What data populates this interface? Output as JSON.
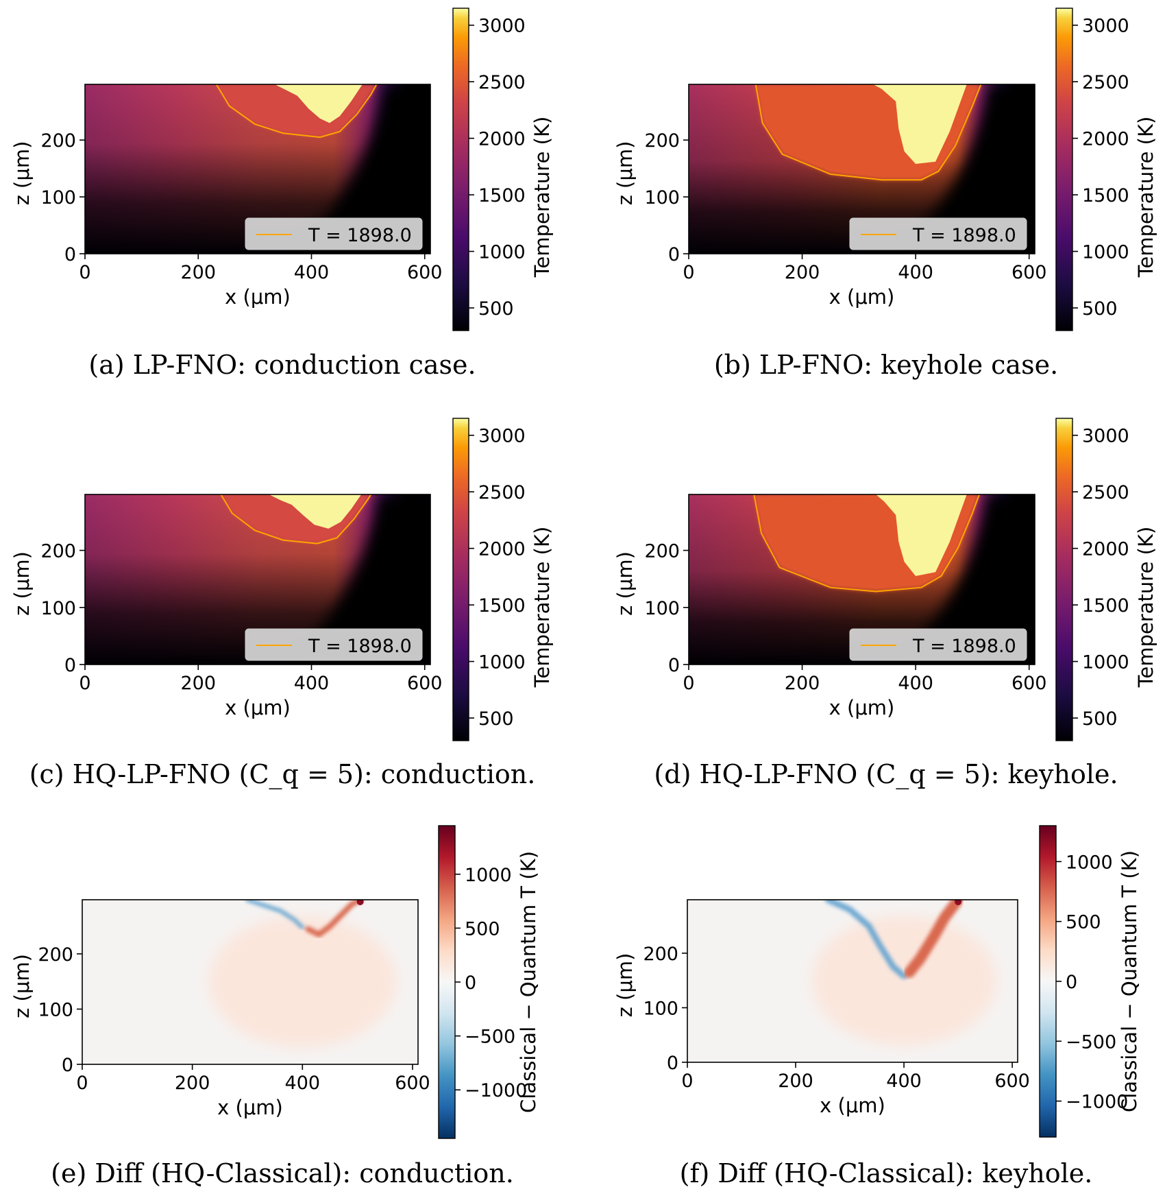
{
  "figure": {
    "legend_label": "T = 1898.0",
    "legend_value": 1898.0
  },
  "chart_data": [
    {
      "id": "a",
      "type": "heatmap",
      "case": "conduction",
      "caption": "(a) LP-FNO: conduction case.",
      "xlabel": "x (μm)",
      "ylabel": "z (μm)",
      "xlim": [
        0,
        610
      ],
      "ylim": [
        0,
        298
      ],
      "xticks": [
        0,
        200,
        400,
        600
      ],
      "yticks": [
        0,
        100,
        200
      ],
      "colorbar": {
        "label": "Temperature (K)",
        "range": [
          300,
          3150
        ],
        "ticks": [
          500,
          1000,
          1500,
          2000,
          2500,
          3000
        ],
        "cmap": "inferno"
      },
      "legend": "T = 1898.0",
      "contour_1898": [
        [
          232,
          298
        ],
        [
          255,
          260
        ],
        [
          300,
          228
        ],
        [
          350,
          212
        ],
        [
          415,
          205
        ],
        [
          450,
          215
        ],
        [
          480,
          245
        ],
        [
          505,
          280
        ],
        [
          515,
          298
        ]
      ],
      "melt_pool_top": [
        [
          335,
          298
        ],
        [
          355,
          288
        ],
        [
          375,
          278
        ],
        [
          395,
          255
        ],
        [
          415,
          238
        ],
        [
          432,
          230
        ],
        [
          450,
          242
        ],
        [
          470,
          268
        ],
        [
          490,
          298
        ]
      ]
    },
    {
      "id": "b",
      "type": "heatmap",
      "case": "keyhole",
      "caption": "(b) LP-FNO: keyhole case.",
      "xlabel": "x (μm)",
      "ylabel": "z (μm)",
      "xlim": [
        0,
        610
      ],
      "ylim": [
        0,
        298
      ],
      "xticks": [
        0,
        200,
        400,
        600
      ],
      "yticks": [
        0,
        100,
        200
      ],
      "colorbar": {
        "label": "Temperature (K)",
        "range": [
          300,
          3150
        ],
        "ticks": [
          500,
          1000,
          1500,
          2000,
          2500,
          3000
        ],
        "cmap": "inferno"
      },
      "legend": "T = 1898.0",
      "contour_1898": [
        [
          118,
          298
        ],
        [
          130,
          230
        ],
        [
          165,
          175
        ],
        [
          250,
          140
        ],
        [
          340,
          130
        ],
        [
          410,
          130
        ],
        [
          440,
          145
        ],
        [
          470,
          190
        ],
        [
          500,
          260
        ],
        [
          515,
          298
        ]
      ],
      "melt_pool_top": [
        [
          325,
          298
        ],
        [
          340,
          290
        ],
        [
          365,
          268
        ],
        [
          370,
          220
        ],
        [
          380,
          180
        ],
        [
          400,
          158
        ],
        [
          435,
          162
        ],
        [
          460,
          215
        ],
        [
          490,
          298
        ]
      ]
    },
    {
      "id": "c",
      "type": "heatmap",
      "case": "conduction",
      "caption": "(c) HQ-LP-FNO (C_q = 5): conduction.",
      "xlabel": "x (μm)",
      "ylabel": "z (μm)",
      "xlim": [
        0,
        610
      ],
      "ylim": [
        0,
        298
      ],
      "xticks": [
        0,
        200,
        400,
        600
      ],
      "yticks": [
        0,
        100,
        200
      ],
      "colorbar": {
        "label": "Temperature (K)",
        "range": [
          300,
          3150
        ],
        "ticks": [
          500,
          1000,
          1500,
          2000,
          2500,
          3000
        ],
        "cmap": "inferno"
      },
      "legend": "T = 1898.0",
      "contour_1898": [
        [
          240,
          298
        ],
        [
          260,
          265
        ],
        [
          300,
          235
        ],
        [
          350,
          218
        ],
        [
          410,
          212
        ],
        [
          445,
          222
        ],
        [
          475,
          255
        ],
        [
          500,
          290
        ],
        [
          505,
          298
        ]
      ],
      "melt_pool_top": [
        [
          325,
          298
        ],
        [
          345,
          288
        ],
        [
          365,
          280
        ],
        [
          385,
          262
        ],
        [
          405,
          245
        ],
        [
          430,
          238
        ],
        [
          452,
          250
        ],
        [
          470,
          272
        ],
        [
          488,
          298
        ]
      ]
    },
    {
      "id": "d",
      "type": "heatmap",
      "case": "keyhole",
      "caption": "(d) HQ-LP-FNO (C_q = 5): keyhole.",
      "xlabel": "x (μm)",
      "ylabel": "z (μm)",
      "xlim": [
        0,
        610
      ],
      "ylim": [
        0,
        298
      ],
      "xticks": [
        0,
        200,
        400,
        600
      ],
      "yticks": [
        0,
        100,
        200
      ],
      "colorbar": {
        "label": "Temperature (K)",
        "range": [
          300,
          3150
        ],
        "ticks": [
          500,
          1000,
          1500,
          2000,
          2500,
          3000
        ],
        "cmap": "inferno"
      },
      "legend": "T = 1898.0",
      "contour_1898": [
        [
          115,
          298
        ],
        [
          128,
          230
        ],
        [
          160,
          170
        ],
        [
          250,
          135
        ],
        [
          330,
          128
        ],
        [
          410,
          135
        ],
        [
          445,
          155
        ],
        [
          475,
          205
        ],
        [
          500,
          265
        ],
        [
          512,
          298
        ]
      ],
      "melt_pool_top": [
        [
          330,
          298
        ],
        [
          345,
          285
        ],
        [
          365,
          262
        ],
        [
          370,
          215
        ],
        [
          380,
          180
        ],
        [
          400,
          155
        ],
        [
          435,
          162
        ],
        [
          460,
          215
        ],
        [
          490,
          298
        ]
      ]
    },
    {
      "id": "e",
      "type": "heatmap",
      "case": "conduction",
      "caption": "(e) Diff (HQ-Classical): conduction.",
      "xlabel": "x (μm)",
      "ylabel": "z (μm)",
      "xlim": [
        0,
        610
      ],
      "ylim": [
        0,
        298
      ],
      "xticks": [
        0,
        200,
        400,
        600
      ],
      "yticks": [
        0,
        100,
        200
      ],
      "colorbar": {
        "label": "Classical − Quantum T (K)",
        "range": [
          -1450,
          1450
        ],
        "ticks": [
          -1000,
          -500,
          0,
          500,
          1000
        ],
        "cmap": "RdBu_r"
      },
      "negative_band": [
        [
          300,
          298
        ],
        [
          330,
          288
        ],
        [
          360,
          278
        ],
        [
          385,
          262
        ],
        [
          400,
          248
        ]
      ],
      "positive_band": [
        [
          410,
          245
        ],
        [
          430,
          235
        ],
        [
          450,
          250
        ],
        [
          470,
          270
        ],
        [
          490,
          290
        ],
        [
          505,
          298
        ]
      ]
    },
    {
      "id": "f",
      "type": "heatmap",
      "case": "keyhole",
      "caption": "(f) Diff (HQ-Classical): keyhole.",
      "xlabel": "x (μm)",
      "ylabel": "z (μm)",
      "xlim": [
        0,
        610
      ],
      "ylim": [
        0,
        298
      ],
      "xticks": [
        0,
        200,
        400,
        600
      ],
      "yticks": [
        0,
        100,
        200
      ],
      "colorbar": {
        "label": "Classical − Quantum T (K)",
        "range": [
          -1300,
          1300
        ],
        "ticks": [
          -1000,
          -500,
          0,
          500,
          1000
        ],
        "cmap": "RdBu_r"
      },
      "negative_band": [
        [
          260,
          298
        ],
        [
          300,
          280
        ],
        [
          335,
          250
        ],
        [
          355,
          215
        ],
        [
          380,
          175
        ],
        [
          400,
          158
        ]
      ],
      "positive_band": [
        [
          410,
          165
        ],
        [
          430,
          190
        ],
        [
          455,
          230
        ],
        [
          475,
          265
        ],
        [
          500,
          298
        ]
      ]
    }
  ]
}
